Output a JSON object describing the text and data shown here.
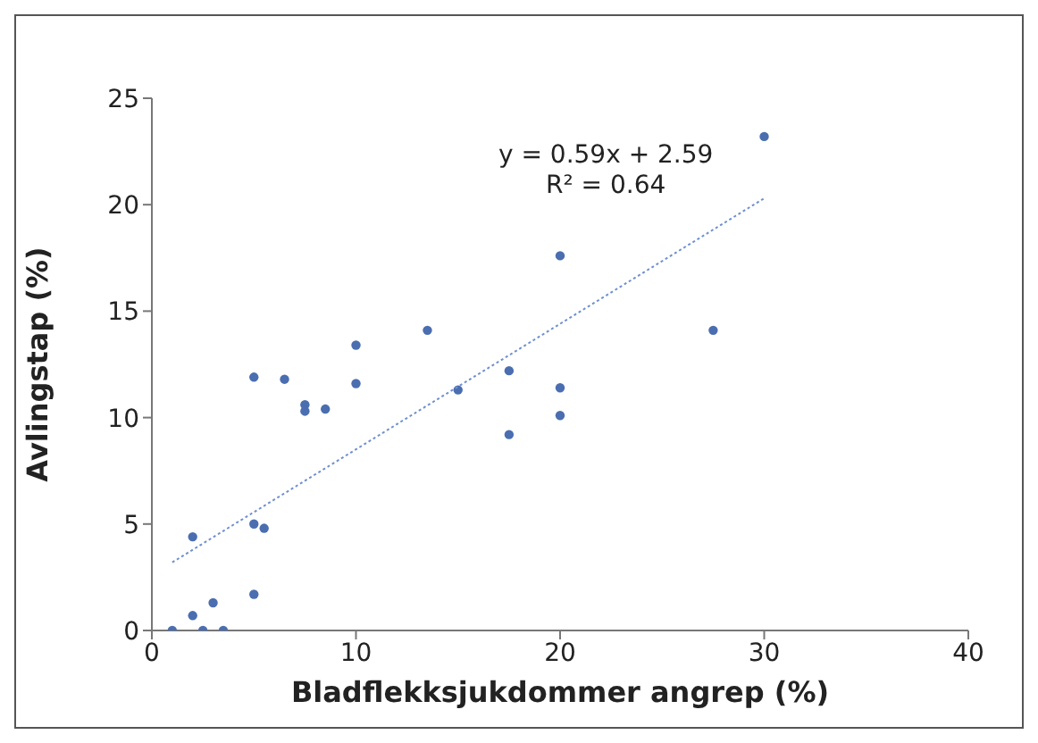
{
  "chart_data": {
    "type": "scatter",
    "xlabel": "Bladflekksjukdommer angrep (%)",
    "ylabel": "Avlingstap (%)",
    "xlim": [
      0,
      40
    ],
    "xticks": [
      0,
      10,
      20,
      30,
      40
    ],
    "ylim": [
      0,
      25
    ],
    "yticks": [
      0,
      5,
      10,
      15,
      20,
      25
    ],
    "grid": false,
    "legend": false,
    "marker": "circle",
    "annotations": [
      "y = 0.59x + 2.59",
      "R² = 0.64"
    ],
    "series": [
      {
        "color": "#4a6eb0",
        "x": [
          1,
          2,
          2,
          2.5,
          3,
          3.5,
          5,
          5,
          5.5,
          5,
          6.5,
          7.5,
          7.5,
          8.5,
          10,
          10,
          13.5,
          15,
          17.5,
          17.5,
          20,
          20,
          20,
          27.5,
          30
        ],
        "values": [
          0,
          0.7,
          4.4,
          0,
          1.3,
          0,
          1.7,
          5,
          4.8,
          11.9,
          11.8,
          10.6,
          10.3,
          10.4,
          11.6,
          13.4,
          14.1,
          11.3,
          12.2,
          9.2,
          11.4,
          10.1,
          17.6,
          14.1,
          23.2
        ]
      },
      {
        "type": "line",
        "color": "#6f8fcf",
        "line_style": "dotted",
        "marker": "none",
        "x": [
          1,
          30
        ],
        "values": [
          3.2,
          20.3
        ]
      }
    ]
  }
}
